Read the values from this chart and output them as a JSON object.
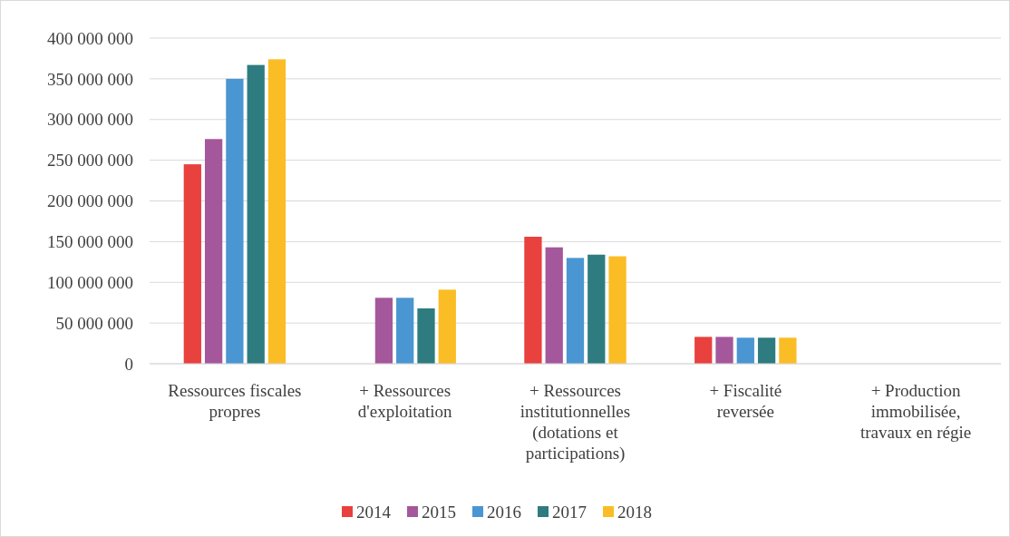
{
  "chart_data": {
    "type": "bar",
    "categories": [
      "Ressources fiscales propres",
      "+ Ressources d'exploitation",
      "+ Ressources institutionnelles (dotations et participations)",
      "+ Fiscalité reversée",
      "+ Production immobilisée, travaux en régie"
    ],
    "series": [
      {
        "name": "2014",
        "color": "#e8413e",
        "values": [
          245000000,
          null,
          156000000,
          33000000,
          null
        ]
      },
      {
        "name": "2015",
        "color": "#a5579b",
        "values": [
          276000000,
          81000000,
          143000000,
          33000000,
          null
        ]
      },
      {
        "name": "2016",
        "color": "#4a96d2",
        "values": [
          350000000,
          81000000,
          130000000,
          32000000,
          null
        ]
      },
      {
        "name": "2017",
        "color": "#2e7c80",
        "values": [
          367000000,
          68000000,
          134000000,
          32000000,
          null
        ]
      },
      {
        "name": "2018",
        "color": "#fbbd26",
        "values": [
          374000000,
          91000000,
          132000000,
          32000000,
          null
        ]
      }
    ],
    "ylim": [
      0,
      400000000
    ],
    "yticks": [
      {
        "value": 0,
        "label": "0"
      },
      {
        "value": 50000000,
        "label": "50 000 000"
      },
      {
        "value": 100000000,
        "label": "100 000 000"
      },
      {
        "value": 150000000,
        "label": "150 000 000"
      },
      {
        "value": 200000000,
        "label": "200 000 000"
      },
      {
        "value": 250000000,
        "label": "250 000 000"
      },
      {
        "value": 300000000,
        "label": "300 000 000"
      },
      {
        "value": 350000000,
        "label": "350 000 000"
      },
      {
        "value": 400000000,
        "label": "400 000 000"
      }
    ],
    "grid": "y",
    "legend": "bottom"
  }
}
